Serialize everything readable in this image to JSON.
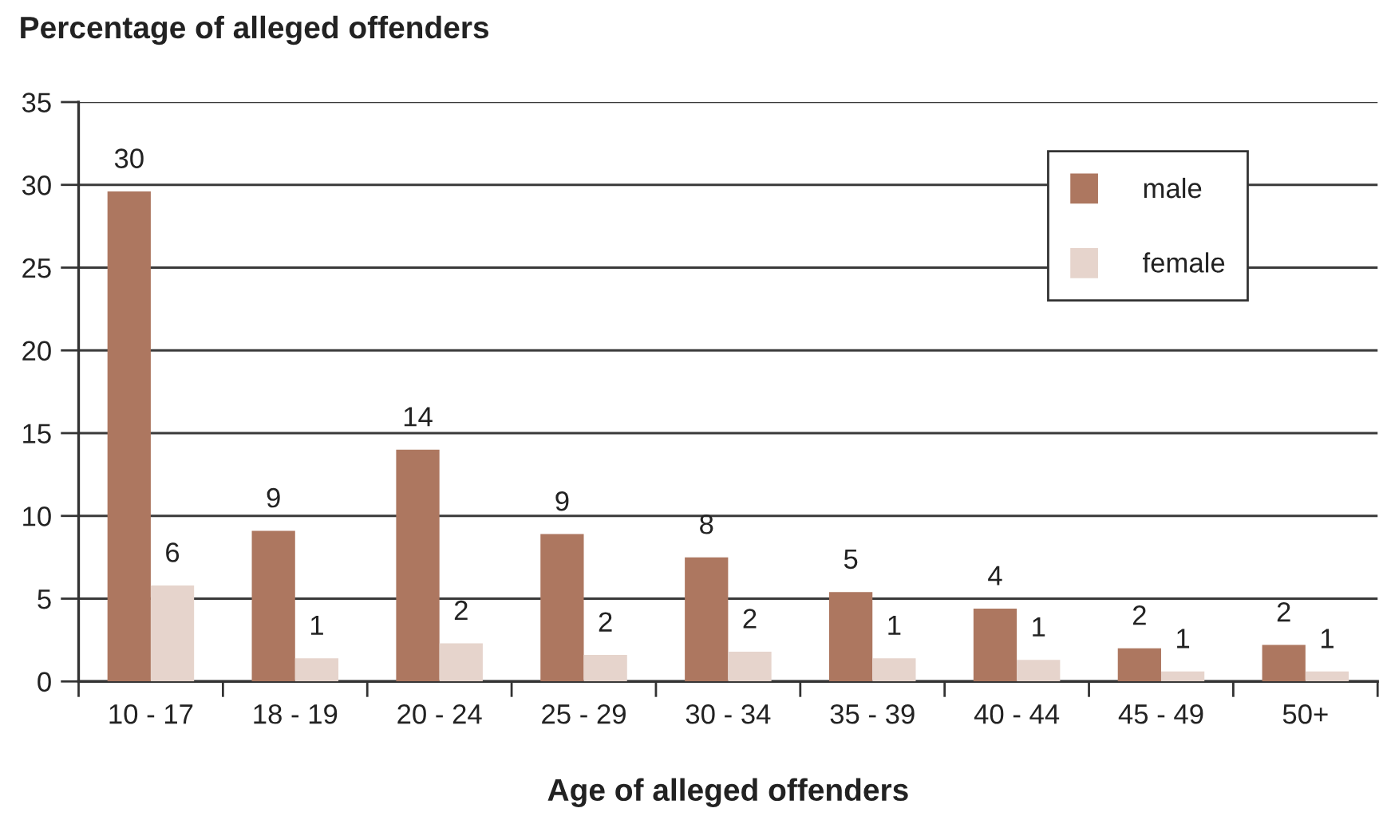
{
  "chart_data": {
    "type": "bar",
    "ylabel": "Percentage of alleged offenders",
    "xlabel": "Age of alleged offenders",
    "categories": [
      "10 - 17",
      "18 - 19",
      "20 - 24",
      "25 - 29",
      "30 - 34",
      "35 - 39",
      "40 - 44",
      "45 - 49",
      "50+"
    ],
    "series": [
      {
        "name": "male",
        "color": "#ad7760",
        "values": [
          29.6,
          9.1,
          14.0,
          8.9,
          7.5,
          5.4,
          4.4,
          2.0,
          2.2
        ],
        "value_labels": [
          "30",
          "9",
          "14",
          "9",
          "8",
          "5",
          "4",
          "2",
          "2"
        ]
      },
      {
        "name": "female",
        "color": "#e6d4cc",
        "values": [
          5.8,
          1.4,
          2.3,
          1.6,
          1.8,
          1.4,
          1.3,
          0.6,
          0.6
        ],
        "value_labels": [
          "6",
          "1",
          "2",
          "2",
          "2",
          "1",
          "1",
          "1",
          "1"
        ]
      }
    ],
    "ylim": [
      0,
      35
    ],
    "yticks": [
      0,
      5,
      10,
      15,
      20,
      25,
      30,
      35
    ],
    "grid": "y",
    "legend": "top right"
  }
}
